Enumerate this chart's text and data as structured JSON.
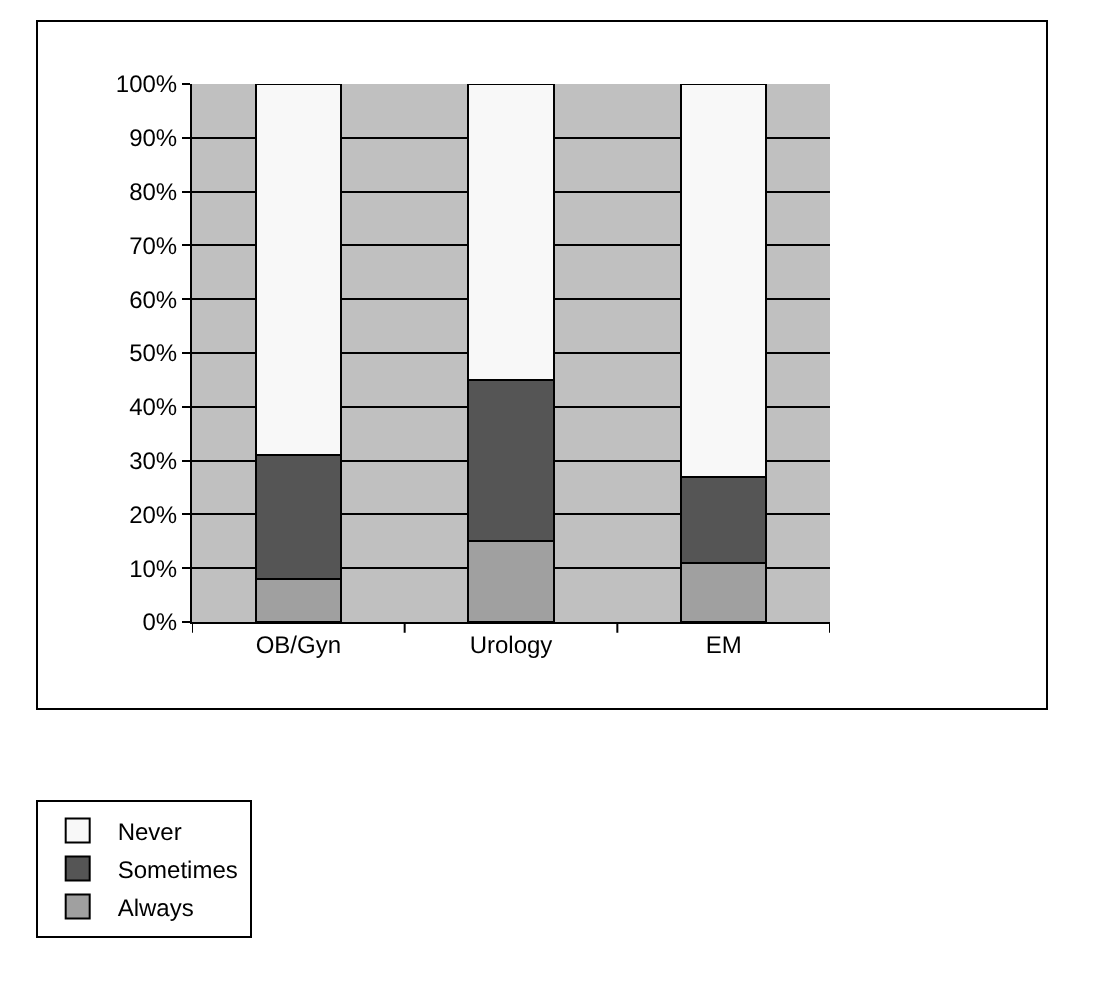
{
  "chart_data": {
    "type": "bar",
    "stacked": true,
    "categories": [
      "OB/Gyn",
      "Urology",
      "EM"
    ],
    "series": [
      {
        "name": "Always",
        "color": "#a0a0a0",
        "values": [
          8,
          15,
          11
        ]
      },
      {
        "name": "Sometimes",
        "color": "#555555",
        "values": [
          23,
          30,
          16
        ]
      },
      {
        "name": "Never",
        "color": "#f8f8f8",
        "values": [
          69,
          55,
          73
        ]
      }
    ],
    "ylim": [
      0,
      100
    ],
    "yticks": [
      {
        "value": 0,
        "label": "0%"
      },
      {
        "value": 10,
        "label": "10%"
      },
      {
        "value": 20,
        "label": "20%"
      },
      {
        "value": 30,
        "label": "30%"
      },
      {
        "value": 40,
        "label": "40%"
      },
      {
        "value": 50,
        "label": "50%"
      },
      {
        "value": 60,
        "label": "60%"
      },
      {
        "value": 70,
        "label": "70%"
      },
      {
        "value": 80,
        "label": "80%"
      },
      {
        "value": 90,
        "label": "90%"
      },
      {
        "value": 100,
        "label": "100%"
      }
    ],
    "grid": "y",
    "legend": "bottom left"
  }
}
